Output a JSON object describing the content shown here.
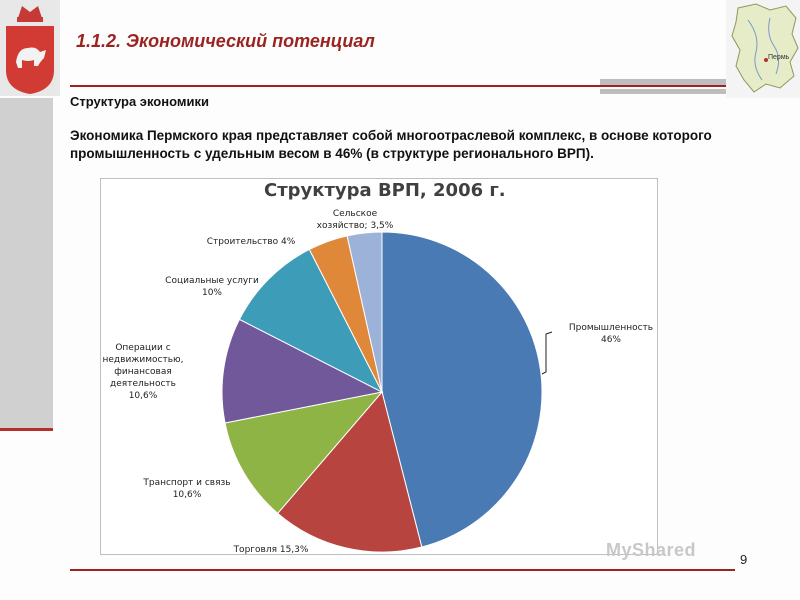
{
  "slide": {
    "title": "1.1.2. Экономический потенциал",
    "subtitle": "Структура экономики",
    "body": "Экономика Пермского края представляет собой многоотраслевой комплекс, в основе которого промышленность с удельным весом в 46% (в структуре регионального ВРП).",
    "page_number": "9",
    "watermark": "MyShared",
    "map_city_label": "Пермь"
  },
  "colors": {
    "accent_red": "#9b2420",
    "Промышленность": "#4a7ab4",
    "Торговля": "#b84440",
    "Транспорт и связь": "#8fb446",
    "Операции с недвижимостью": "#70589a",
    "Социальные услуги": "#3d9cb8",
    "Строительство": "#e0883a",
    "Сельское хозяйство": "#9cb2d8"
  },
  "chart_data": {
    "type": "pie",
    "title": "Структура ВРП, 2006 г.",
    "unit": "%",
    "slices": [
      {
        "name": "Промышленность",
        "value": 46,
        "label": "46%"
      },
      {
        "name": "Торговля",
        "value": 15.3,
        "label": "15,3%"
      },
      {
        "name": "Транспорт и связь",
        "value": 10.6,
        "label": "10,6%"
      },
      {
        "name": "Операции с недвижимостью, финансовая деятельность",
        "value": 10.6,
        "label": "10,6%"
      },
      {
        "name": "Социальные услуги",
        "value": 10,
        "label": "10%"
      },
      {
        "name": "Строительство",
        "value": 4,
        "label": "4%"
      },
      {
        "name": "Сельское хозяйство",
        "value": 3.5,
        "label": "3,5%"
      }
    ],
    "legend": "none",
    "labels_text": {
      "prom_1": "Промышленность",
      "prom_2": "46%",
      "torg": "Торговля 15,3%",
      "trans_1": "Транспорт и связь",
      "trans_2": "10,6%",
      "ned_1": "Операции с",
      "ned_2": "недвижимостью,",
      "ned_3": "финансовая",
      "ned_4": "деятельность",
      "ned_5": "10,6%",
      "soc_1": "Социальные услуги",
      "soc_2": "10%",
      "stroi": "Строительство  4%",
      "selh_1": "Сельское",
      "selh_2": "хозяйство; 3,5%"
    }
  }
}
